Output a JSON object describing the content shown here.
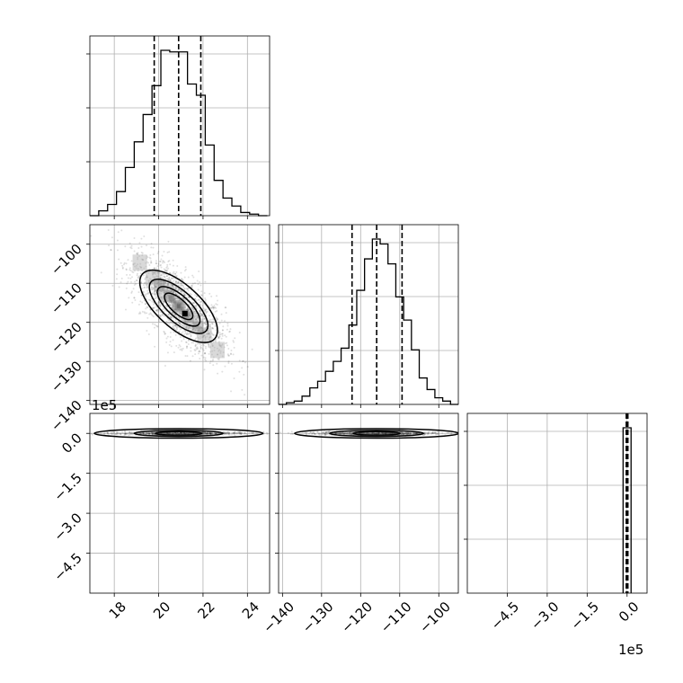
{
  "chart_data": {
    "type": "corner",
    "grid": true,
    "offset_text": "1e5",
    "params": [
      {
        "index": 0,
        "range": [
          16.9,
          25.0
        ],
        "ticks": [
          18,
          20,
          22,
          24
        ],
        "tick_labels": [
          "18",
          "20",
          "22",
          "24"
        ],
        "quantiles": [
          19.8,
          20.9,
          21.9
        ]
      },
      {
        "index": 1,
        "range": [
          -141,
          -95
        ],
        "ticks": [
          -140,
          -130,
          -120,
          -110,
          -100
        ],
        "tick_labels": [
          "−140",
          "−130",
          "−120",
          "−110",
          "−100"
        ],
        "quantiles": [
          -122.2,
          -115.9,
          -109.4
        ]
      },
      {
        "index": 2,
        "range": [
          -6.0,
          0.75
        ],
        "ticks": [
          -4.5,
          -3.0,
          -1.5,
          0.0
        ],
        "tick_labels": [
          "−4.5",
          "−3.0",
          "−1.5",
          "0.0"
        ],
        "quantiles": [
          -0.03,
          0.0,
          0.03
        ]
      }
    ],
    "marginals": [
      {
        "param": 0,
        "bin_edges": [
          16.9,
          17.3,
          17.7,
          18.1,
          18.5,
          18.9,
          19.3,
          19.7,
          20.1,
          20.5,
          20.9,
          21.3,
          21.7,
          22.1,
          22.5,
          22.9,
          23.3,
          23.7,
          24.1,
          24.5,
          24.9
        ],
        "counts": [
          0,
          3,
          7,
          15,
          30,
          46,
          63,
          81,
          103,
          102,
          102,
          82,
          75,
          44,
          22,
          11,
          6,
          2,
          1,
          0
        ]
      },
      {
        "param": 1,
        "bin_edges": [
          -141,
          -139,
          -137,
          -135,
          -133,
          -131,
          -129,
          -127,
          -125,
          -123,
          -121,
          -119,
          -117,
          -115,
          -113,
          -111,
          -109,
          -107,
          -105,
          -103,
          -101,
          -99,
          -97,
          -95
        ],
        "counts": [
          0,
          1,
          2,
          5,
          10,
          14,
          20,
          26,
          34,
          48,
          69,
          88,
          100,
          97,
          85,
          65,
          51,
          33,
          16,
          9,
          4,
          2,
          0
        ]
      },
      {
        "param": 2,
        "bin_edges": [
          -0.15,
          0.15
        ],
        "counts": [
          100
        ]
      }
    ],
    "joint": [
      {
        "x_param": 0,
        "y_param": 1,
        "mean": [
          20.9,
          -115.9
        ],
        "corr": -0.72,
        "sd": [
          1.05,
          6.4
        ],
        "contour_levels_sigma": [
          0.5,
          1.0,
          1.5,
          2.0
        ]
      },
      {
        "x_param": 0,
        "y_param": 2,
        "center": [
          20.9,
          0.0
        ],
        "contour_halfwidths": [
          3.8,
          2.0,
          1.05
        ],
        "contour_halfheights": [
          0.09,
          0.05,
          0.02
        ]
      },
      {
        "x_param": 1,
        "y_param": 2,
        "center": [
          -115.9,
          0.0
        ],
        "contour_halfwidths": [
          21,
          12,
          6
        ],
        "contour_halfheights": [
          0.09,
          0.05,
          0.02
        ]
      }
    ]
  }
}
